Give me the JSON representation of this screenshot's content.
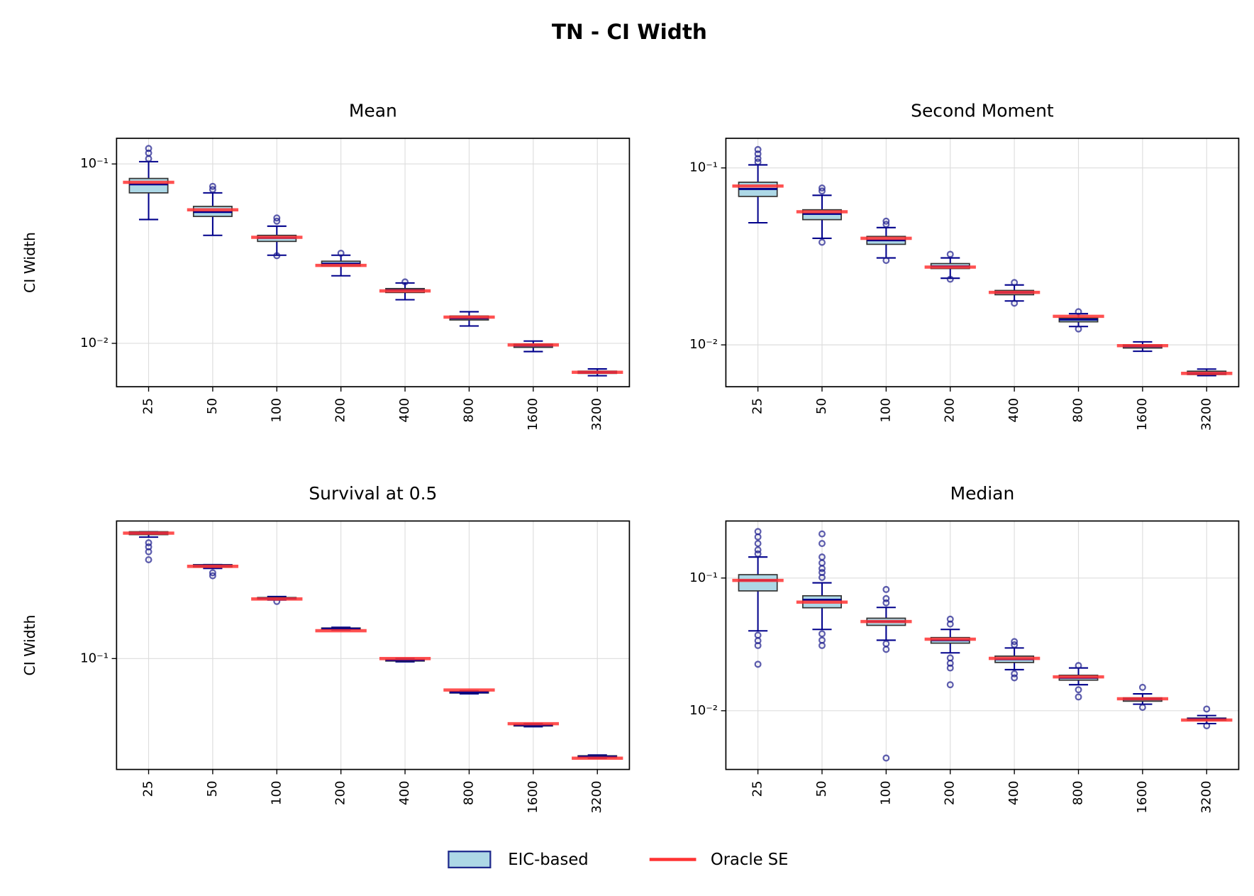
{
  "title": "TN - CI Width",
  "legend": [
    {
      "name": "EIC-based",
      "color": "#add8e6",
      "edge": "#1f2a8c"
    },
    {
      "name": "Oracle SE",
      "color": "#ff3333"
    }
  ],
  "chart_data": [
    {
      "type": "box",
      "title": "Mean",
      "ylabel": "CI Width",
      "log": true,
      "grid": true,
      "categories": [
        "25",
        "50",
        "100",
        "200",
        "400",
        "800",
        "1600",
        "3200"
      ],
      "ylim": [
        0.00573,
        0.139
      ],
      "yticks": [
        {
          "value": 0.01,
          "label": "10⁻²"
        },
        {
          "value": 0.1,
          "label": "10⁻¹"
        }
      ],
      "boxes": [
        {
          "whislo": 0.049,
          "q1": 0.069,
          "med": 0.077,
          "q3": 0.083,
          "whishi": 0.103,
          "fliers": [
            0.122,
            0.115,
            0.107
          ]
        },
        {
          "whislo": 0.04,
          "q1": 0.051,
          "med": 0.054,
          "q3": 0.058,
          "whishi": 0.069,
          "fliers": [
            0.075,
            0.072
          ]
        },
        {
          "whislo": 0.031,
          "q1": 0.037,
          "med": 0.0387,
          "q3": 0.04,
          "whishi": 0.045,
          "fliers": [
            0.05,
            0.048,
            0.0308
          ]
        },
        {
          "whislo": 0.0238,
          "q1": 0.027,
          "med": 0.0278,
          "q3": 0.0287,
          "whishi": 0.031,
          "fliers": [
            0.0318
          ]
        },
        {
          "whislo": 0.0175,
          "q1": 0.0192,
          "med": 0.0198,
          "q3": 0.0202,
          "whishi": 0.0217,
          "fliers": [
            0.022
          ]
        },
        {
          "whislo": 0.0125,
          "q1": 0.0135,
          "med": 0.0138,
          "q3": 0.0142,
          "whishi": 0.015,
          "fliers": []
        },
        {
          "whislo": 0.009,
          "q1": 0.0095,
          "med": 0.0097,
          "q3": 0.0099,
          "whishi": 0.0103,
          "fliers": []
        },
        {
          "whislo": 0.0066,
          "q1": 0.0068,
          "med": 0.0069,
          "q3": 0.007,
          "whishi": 0.0072,
          "fliers": []
        }
      ],
      "oracle": [
        0.079,
        0.0555,
        0.039,
        0.0272,
        0.0196,
        0.014,
        0.0098,
        0.0069
      ]
    },
    {
      "type": "box",
      "title": "Second Moment",
      "log": true,
      "grid": true,
      "categories": [
        "25",
        "50",
        "100",
        "200",
        "400",
        "800",
        "1600",
        "3200"
      ],
      "ylim": [
        0.0058,
        0.147
      ],
      "yticks": [
        {
          "value": 0.01,
          "label": "10⁻²"
        },
        {
          "value": 0.1,
          "label": "10⁻¹"
        }
      ],
      "boxes": [
        {
          "whislo": 0.049,
          "q1": 0.069,
          "med": 0.076,
          "q3": 0.083,
          "whishi": 0.104,
          "fliers": [
            0.127,
            0.12,
            0.113,
            0.108
          ]
        },
        {
          "whislo": 0.04,
          "q1": 0.051,
          "med": 0.055,
          "q3": 0.058,
          "whishi": 0.07,
          "fliers": [
            0.077,
            0.074,
            0.038
          ]
        },
        {
          "whislo": 0.031,
          "q1": 0.037,
          "med": 0.039,
          "q3": 0.041,
          "whishi": 0.046,
          "fliers": [
            0.05,
            0.048,
            0.03
          ]
        },
        {
          "whislo": 0.0238,
          "q1": 0.027,
          "med": 0.0278,
          "q3": 0.0288,
          "whishi": 0.031,
          "fliers": [
            0.0325,
            0.0235
          ]
        },
        {
          "whislo": 0.0177,
          "q1": 0.0192,
          "med": 0.0198,
          "q3": 0.0203,
          "whishi": 0.0218,
          "fliers": [
            0.0225,
            0.0172
          ]
        },
        {
          "whislo": 0.0127,
          "q1": 0.0135,
          "med": 0.0139,
          "q3": 0.0142,
          "whishi": 0.015,
          "fliers": [
            0.0154,
            0.0123
          ]
        },
        {
          "whislo": 0.0092,
          "q1": 0.0096,
          "med": 0.0098,
          "q3": 0.01,
          "whishi": 0.0104,
          "fliers": []
        },
        {
          "whislo": 0.0067,
          "q1": 0.0068,
          "med": 0.0069,
          "q3": 0.0071,
          "whishi": 0.0073,
          "fliers": []
        }
      ],
      "oracle": [
        0.079,
        0.0565,
        0.04,
        0.0275,
        0.0198,
        0.0145,
        0.0099,
        0.0069
      ]
    },
    {
      "type": "box",
      "title": "Survival at 0.5",
      "ylabel": "CI Width",
      "log": true,
      "grid": true,
      "categories": [
        "25",
        "50",
        "100",
        "200",
        "400",
        "800",
        "1600",
        "3200"
      ],
      "ylim": [
        0.0303,
        0.44
      ],
      "yticks": [
        {
          "value": 0.1,
          "label": "10⁻¹"
        }
      ],
      "boxes": [
        {
          "whislo": 0.37,
          "q1": 0.38,
          "med": 0.386,
          "q3": 0.392,
          "whishi": 0.392,
          "fliers": [
            0.348,
            0.333,
            0.316,
            0.29
          ]
        },
        {
          "whislo": 0.264,
          "q1": 0.268,
          "med": 0.273,
          "q3": 0.275,
          "whishi": 0.275,
          "fliers": [
            0.252,
            0.244
          ]
        },
        {
          "whislo": 0.188,
          "q1": 0.19,
          "med": 0.191,
          "q3": 0.193,
          "whishi": 0.195,
          "fliers": [
            0.185
          ]
        },
        {
          "whislo": 0.136,
          "q1": 0.137,
          "med": 0.138,
          "q3": 0.139,
          "whishi": 0.14,
          "fliers": []
        },
        {
          "whislo": 0.0966,
          "q1": 0.0974,
          "med": 0.0983,
          "q3": 0.0991,
          "whishi": 0.1,
          "fliers": []
        },
        {
          "whislo": 0.0684,
          "q1": 0.069,
          "med": 0.0695,
          "q3": 0.0701,
          "whishi": 0.0707,
          "fliers": []
        },
        {
          "whislo": 0.048,
          "q1": 0.0484,
          "med": 0.0488,
          "q3": 0.0492,
          "whishi": 0.0496,
          "fliers": []
        },
        {
          "whislo": 0.0342,
          "q1": 0.0345,
          "med": 0.0348,
          "q3": 0.0351,
          "whishi": 0.0354,
          "fliers": []
        }
      ],
      "oracle": [
        0.386,
        0.27,
        0.19,
        0.135,
        0.1,
        0.0713,
        0.0496,
        0.0342
      ]
    },
    {
      "type": "box",
      "title": "Median",
      "log": true,
      "grid": true,
      "categories": [
        "25",
        "50",
        "100",
        "200",
        "400",
        "800",
        "1600",
        "3200"
      ],
      "ylim": [
        0.00361,
        0.269
      ],
      "yticks": [
        {
          "value": 0.01,
          "label": "10⁻²"
        },
        {
          "value": 0.1,
          "label": "10⁻¹"
        }
      ],
      "boxes": [
        {
          "whislo": 0.04,
          "q1": 0.08,
          "med": 0.096,
          "q3": 0.106,
          "whishi": 0.144,
          "fliers": [
            0.224,
            0.204,
            0.182,
            0.163,
            0.152,
            0.0371,
            0.0337,
            0.031,
            0.0224
          ]
        },
        {
          "whislo": 0.041,
          "q1": 0.0597,
          "med": 0.0686,
          "q3": 0.0735,
          "whishi": 0.092,
          "fliers": [
            0.215,
            0.182,
            0.144,
            0.13,
            0.118,
            0.11,
            0.101,
            0.038,
            0.034,
            0.031
          ]
        },
        {
          "whislo": 0.034,
          "q1": 0.044,
          "med": 0.047,
          "q3": 0.0498,
          "whishi": 0.06,
          "fliers": [
            0.082,
            0.07,
            0.065,
            0.032,
            0.029,
            0.0044
          ]
        },
        {
          "whislo": 0.0273,
          "q1": 0.0323,
          "med": 0.034,
          "q3": 0.0356,
          "whishi": 0.041,
          "fliers": [
            0.049,
            0.045,
            0.025,
            0.0228,
            0.021,
            0.0157
          ]
        },
        {
          "whislo": 0.0204,
          "q1": 0.0231,
          "med": 0.0244,
          "q3": 0.0258,
          "whishi": 0.0297,
          "fliers": [
            0.0332,
            0.0314,
            0.019,
            0.0177
          ]
        },
        {
          "whislo": 0.0157,
          "q1": 0.017,
          "med": 0.0177,
          "q3": 0.0185,
          "whishi": 0.021,
          "fliers": [
            0.0219,
            0.0144,
            0.0127
          ]
        },
        {
          "whislo": 0.0112,
          "q1": 0.0118,
          "med": 0.0122,
          "q3": 0.0125,
          "whishi": 0.0134,
          "fliers": [
            0.015,
            0.0106
          ]
        },
        {
          "whislo": 0.008,
          "q1": 0.0085,
          "med": 0.0087,
          "q3": 0.0088,
          "whishi": 0.0092,
          "fliers": [
            0.0103,
            0.0077
          ]
        }
      ],
      "oracle": [
        0.096,
        0.0658,
        0.047,
        0.0346,
        0.0248,
        0.018,
        0.0123,
        0.0085
      ]
    }
  ]
}
